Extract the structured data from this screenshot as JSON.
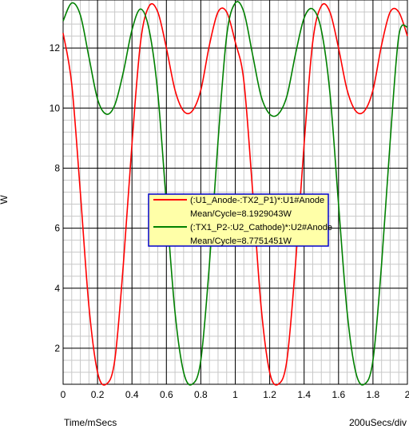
{
  "chart_data": {
    "type": "line",
    "title": "",
    "xlabel": "Time/mSecs",
    "ylabel": "W",
    "x_scale_note": "200uSecs/div",
    "xlim": [
      0,
      2.0
    ],
    "ylim": [
      0.8,
      13.6
    ],
    "x_ticks": [
      "0",
      "0.2",
      "0.4",
      "0.6",
      "0.8",
      "1",
      "1.2",
      "1.4",
      "1.6",
      "1.8",
      "2"
    ],
    "x_tick_values": [
      0,
      0.2,
      0.4,
      0.6,
      0.8,
      1.0,
      1.2,
      1.4,
      1.6,
      1.8,
      2.0
    ],
    "y_ticks": [
      "2",
      "4",
      "6",
      "8",
      "10",
      "12"
    ],
    "y_tick_values": [
      2,
      4,
      6,
      8,
      10,
      12
    ],
    "grid": true,
    "minor_grid": true,
    "legend_position": "center",
    "series": [
      {
        "name": "(:U1_Anode-:TX2_P1)*:U1#Anode",
        "stat": "Mean/Cycle=8.1929043W",
        "color": "#ff0000",
        "x": [
          0,
          0.05,
          0.1,
          0.15,
          0.2,
          0.25,
          0.3,
          0.35,
          0.4,
          0.45,
          0.5,
          0.55,
          0.6,
          0.65,
          0.7,
          0.75,
          0.8,
          0.85,
          0.9,
          0.95,
          1.0,
          1.05,
          1.1,
          1.15,
          1.2,
          1.25,
          1.3,
          1.35,
          1.4,
          1.45,
          1.5,
          1.55,
          1.6,
          1.65,
          1.7,
          1.75,
          1.8,
          1.85,
          1.9,
          1.95,
          2.0
        ],
        "values": [
          12.5,
          10.8,
          7.2,
          3.4,
          1.2,
          0.8,
          1.6,
          4.8,
          8.8,
          12.2,
          13.4,
          13.2,
          12.0,
          10.6,
          9.9,
          9.9,
          10.6,
          12.1,
          13.2,
          13.2,
          12.2,
          10.9,
          7.3,
          3.4,
          1.2,
          0.8,
          1.6,
          4.8,
          8.8,
          12.2,
          13.4,
          13.2,
          12.0,
          10.6,
          9.9,
          9.9,
          10.6,
          12.1,
          13.2,
          13.2,
          12.4
        ]
      },
      {
        "name": "(:TX1_P2-:U2_Cathode)*:U2#Anode",
        "stat": "Mean/Cycle=8.7751451W",
        "color": "#008000",
        "x": [
          0,
          0.05,
          0.1,
          0.15,
          0.2,
          0.25,
          0.3,
          0.35,
          0.4,
          0.45,
          0.5,
          0.55,
          0.6,
          0.65,
          0.7,
          0.75,
          0.8,
          0.85,
          0.9,
          0.95,
          1.0,
          1.05,
          1.1,
          1.15,
          1.2,
          1.25,
          1.3,
          1.35,
          1.4,
          1.45,
          1.5,
          1.55,
          1.6,
          1.65,
          1.7,
          1.75,
          1.8,
          1.85,
          1.9,
          1.95,
          2.0
        ],
        "values": [
          12.9,
          13.5,
          13.1,
          11.7,
          10.3,
          9.8,
          10.1,
          11.2,
          12.6,
          13.3,
          12.6,
          10.5,
          6.8,
          3.2,
          1.2,
          0.8,
          1.6,
          4.8,
          8.9,
          12.4,
          13.5,
          13.2,
          11.8,
          10.4,
          9.8,
          9.8,
          10.4,
          11.8,
          13.0,
          13.3,
          12.6,
          10.5,
          6.8,
          3.2,
          1.2,
          0.8,
          1.6,
          4.8,
          8.9,
          12.4,
          12.7
        ]
      }
    ]
  }
}
